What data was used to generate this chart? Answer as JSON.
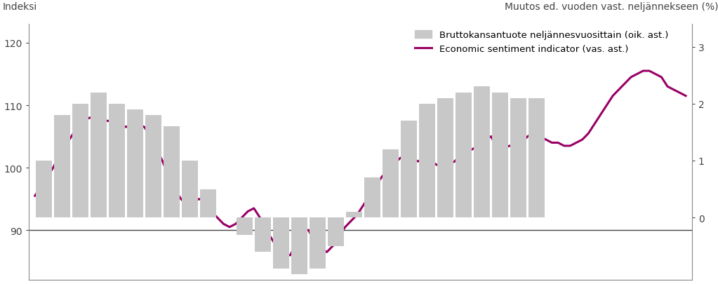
{
  "left_label": "Indeksi",
  "right_label": "Muutos ed. vuoden vast. neljännekseen (%)",
  "legend_bar": "Bruttokansantuote neljännesvuosittain (oik. ast.)",
  "legend_line": "Economic sentiment indicator (vas. ast.)",
  "ylim_left": [
    82,
    123
  ],
  "ylim_right": [
    -1.1,
    3.4
  ],
  "yticks_left": [
    90,
    100,
    110,
    120
  ],
  "yticks_right": [
    0,
    1,
    2,
    3
  ],
  "bar_color": "#c8c8c8",
  "line_color": "#990066",
  "background_color": "#ffffff",
  "esi_monthly": [
    95.5,
    97.0,
    98.5,
    100.0,
    102.0,
    103.5,
    105.0,
    106.5,
    107.5,
    108.0,
    107.8,
    107.5,
    107.5,
    107.3,
    107.0,
    106.5,
    107.0,
    107.0,
    106.5,
    105.0,
    103.0,
    101.0,
    98.5,
    96.5,
    95.0,
    94.0,
    94.5,
    95.0,
    94.5,
    93.0,
    92.0,
    91.0,
    90.5,
    91.0,
    92.0,
    93.0,
    93.5,
    92.0,
    90.0,
    88.5,
    87.0,
    86.0,
    86.0,
    88.0,
    90.0,
    90.0,
    88.0,
    87.0,
    86.5,
    87.5,
    89.0,
    90.5,
    91.5,
    92.5,
    94.0,
    95.5,
    97.0,
    98.5,
    99.5,
    100.5,
    101.5,
    102.0,
    101.5,
    101.0,
    101.5,
    101.0,
    100.5,
    100.0,
    100.5,
    101.0,
    102.0,
    102.5,
    103.0,
    103.5,
    104.5,
    105.0,
    103.0,
    103.0,
    103.5,
    103.5,
    104.0,
    105.0,
    105.5,
    105.0,
    104.5,
    104.0,
    104.0,
    103.5,
    103.5,
    104.0,
    104.5,
    105.5,
    107.0,
    108.5,
    110.0,
    111.5,
    112.5,
    113.5,
    114.5,
    115.0,
    115.5,
    115.5,
    115.0,
    114.5,
    113.0,
    112.5,
    112.0,
    111.5
  ],
  "gdp_quarterly": [
    1.0,
    1.8,
    2.0,
    2.2,
    2.0,
    1.9,
    1.8,
    1.6,
    1.0,
    0.5,
    0.0,
    -0.3,
    -0.6,
    -0.9,
    -1.0,
    -0.9,
    -0.5,
    0.1,
    0.7,
    1.2,
    1.7,
    2.0,
    2.1,
    2.2,
    2.3,
    2.2,
    2.1,
    2.1
  ],
  "n_months": 108,
  "n_quarters": 28
}
